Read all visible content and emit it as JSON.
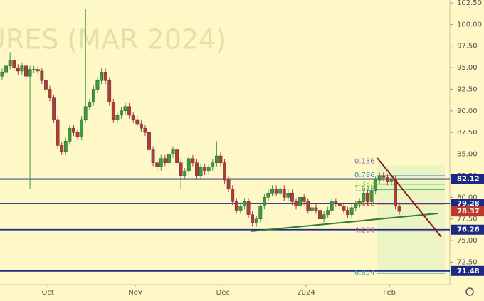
{
  "chart_data": {
    "type": "candlestick",
    "watermark": "URES (MAR 2024)",
    "up_color": "#3d9a3d",
    "down_color": "#b33a3a",
    "open": [
      94.0,
      94.5,
      95.2,
      95.8,
      95.0,
      94.6,
      95.2,
      94.0,
      94.8,
      94.8,
      94.6,
      93.5,
      92.5,
      91.5,
      89.0,
      86.0,
      85.3,
      86.5,
      88.0,
      87.5,
      87.0,
      89.0,
      90.5,
      91.0,
      92.5,
      93.5,
      94.5,
      93.5,
      91.0,
      89.0,
      89.5,
      90.0,
      90.5,
      89.5,
      89.0,
      88.5,
      88.0,
      87.5,
      85.5,
      84.0,
      83.5,
      84.5,
      84.0,
      85.0,
      85.5,
      84.0,
      82.5,
      83.0,
      84.5,
      84.0,
      82.5,
      83.5,
      83.0,
      83.5,
      84.0,
      84.8,
      84.0,
      82.0,
      81.0,
      79.5,
      78.5,
      79.0,
      79.5,
      78.0,
      77.0,
      77.5,
      79.0,
      80.0,
      80.5,
      81.0,
      80.5,
      81.0,
      80.0,
      80.5,
      79.5,
      79.0,
      80.0,
      79.5,
      78.5,
      78.8,
      78.5,
      77.5,
      78.0,
      78.5,
      79.5,
      79.3,
      79.0,
      78.5,
      78.0,
      78.8,
      79.2,
      79.5,
      80.5,
      79.5,
      80.8,
      82.0,
      82.5,
      82.3,
      81.8,
      82.0,
      79.0
    ],
    "high": [
      94.9,
      95.6,
      96.8,
      96.2,
      95.4,
      95.6,
      95.6,
      95.2,
      95.2,
      95.2,
      95.0,
      93.9,
      92.9,
      91.9,
      89.4,
      86.4,
      86.9,
      88.4,
      88.4,
      87.9,
      89.4,
      101.8,
      91.4,
      92.9,
      93.9,
      94.9,
      94.9,
      93.9,
      91.4,
      89.9,
      90.4,
      90.9,
      90.9,
      89.9,
      89.4,
      88.9,
      88.4,
      87.9,
      85.9,
      84.4,
      84.9,
      84.9,
      85.4,
      85.9,
      85.9,
      84.4,
      83.4,
      84.9,
      84.9,
      84.4,
      83.9,
      83.9,
      83.9,
      84.4,
      86.5,
      85.2,
      84.4,
      82.4,
      81.4,
      79.9,
      79.4,
      79.9,
      79.9,
      78.4,
      77.9,
      79.4,
      80.4,
      80.9,
      81.4,
      81.4,
      81.4,
      81.4,
      80.9,
      80.9,
      79.9,
      80.4,
      80.4,
      79.9,
      79.2,
      79.2,
      78.9,
      78.4,
      78.9,
      79.9,
      79.9,
      79.7,
      79.4,
      78.9,
      79.2,
      79.6,
      79.9,
      80.9,
      80.9,
      81.2,
      82.4,
      82.9,
      82.9,
      82.7,
      82.4,
      82.4,
      79.4
    ],
    "low": [
      93.6,
      94.1,
      94.8,
      94.6,
      94.2,
      94.2,
      93.6,
      81.0,
      94.4,
      94.2,
      93.1,
      92.1,
      91.1,
      88.6,
      85.6,
      84.9,
      84.9,
      86.1,
      87.1,
      86.6,
      86.6,
      88.6,
      90.1,
      90.6,
      92.1,
      93.1,
      93.1,
      90.6,
      88.6,
      88.6,
      89.1,
      89.6,
      89.1,
      88.6,
      88.1,
      87.6,
      87.1,
      85.1,
      83.6,
      83.1,
      83.1,
      83.6,
      83.6,
      84.6,
      83.6,
      81.0,
      82.1,
      82.6,
      83.6,
      82.1,
      82.1,
      82.6,
      82.6,
      83.1,
      83.6,
      83.6,
      81.6,
      80.6,
      79.1,
      78.1,
      78.1,
      78.6,
      77.6,
      76.6,
      76.6,
      77.1,
      78.6,
      79.6,
      80.1,
      80.1,
      80.1,
      79.6,
      79.6,
      79.1,
      78.6,
      78.6,
      79.1,
      78.1,
      78.1,
      78.1,
      77.1,
      77.1,
      77.6,
      78.1,
      78.9,
      78.6,
      78.1,
      77.6,
      77.6,
      78.4,
      78.8,
      79.1,
      79.1,
      79.1,
      80.4,
      81.6,
      81.9,
      81.4,
      81.4,
      78.6,
      78.0
    ],
    "close": [
      94.5,
      95.2,
      95.8,
      95.0,
      94.6,
      95.2,
      94.0,
      94.8,
      94.8,
      94.6,
      93.5,
      92.5,
      91.5,
      89.0,
      86.0,
      85.3,
      86.5,
      88.0,
      87.5,
      87.0,
      89.0,
      90.5,
      91.0,
      92.5,
      93.5,
      94.5,
      93.5,
      91.0,
      89.0,
      89.5,
      90.0,
      90.5,
      89.5,
      89.0,
      88.5,
      88.0,
      87.5,
      85.5,
      84.0,
      83.5,
      84.5,
      84.0,
      85.0,
      85.5,
      84.0,
      82.5,
      83.0,
      84.5,
      84.0,
      82.5,
      83.5,
      83.0,
      83.5,
      84.0,
      84.8,
      84.0,
      82.0,
      81.0,
      79.5,
      78.5,
      79.0,
      79.5,
      78.0,
      77.0,
      77.5,
      79.0,
      80.0,
      80.5,
      81.0,
      80.5,
      81.0,
      80.0,
      80.5,
      79.5,
      79.0,
      80.0,
      79.5,
      78.5,
      78.8,
      78.5,
      77.5,
      78.0,
      78.5,
      79.5,
      79.3,
      79.0,
      78.5,
      78.0,
      78.8,
      79.2,
      79.5,
      80.5,
      79.5,
      80.8,
      82.0,
      82.5,
      82.3,
      81.8,
      82.0,
      79.0,
      78.37
    ],
    "xlim": [
      -0.54,
      112.7
    ],
    "xticks": [
      {
        "value": 11.5,
        "label": "Oct"
      },
      {
        "value": 33.5,
        "label": "Nov"
      },
      {
        "value": 55.6,
        "label": "Dec"
      },
      {
        "value": 76.5,
        "label": "2024"
      },
      {
        "value": 97.5,
        "label": "Feb"
      }
    ],
    "ylim": [
      69.9,
      102.83
    ],
    "yticks": [
      {
        "value": 102.5,
        "label": "102.50"
      },
      {
        "value": 100,
        "label": "100.00"
      },
      {
        "value": 97.5,
        "label": "97.50"
      },
      {
        "value": 95,
        "label": "95.00"
      },
      {
        "value": 92.5,
        "label": "92.50"
      },
      {
        "value": 90,
        "label": "90.00"
      },
      {
        "value": 87.5,
        "label": "87.50"
      },
      {
        "value": 85,
        "label": "85.00"
      },
      {
        "value": 82.5,
        "label": "82.50"
      },
      {
        "value": 80,
        "label": "80.00"
      },
      {
        "value": 77.5,
        "label": "77.50"
      },
      {
        "value": 75,
        "label": "75.00"
      },
      {
        "value": 72.5,
        "label": "72.50"
      }
    ],
    "levels": [
      82.12,
      79.28,
      76.26,
      71.48
    ],
    "level_color": "#1c2a86",
    "last_price": 78.37,
    "last_price_color": "#c0392b",
    "fib_labels": [
      {
        "label": "0.136",
        "value": 84.1,
        "color": "#9b59b6"
      },
      {
        "label": "0.786",
        "value": 82.5,
        "color": "#2e86c1"
      },
      {
        "label": "1.382",
        "value": 81.5,
        "color": "#9acd32"
      },
      {
        "label": "1.618",
        "value": 80.9,
        "color": "#27ae60"
      },
      {
        "label": "2.618",
        "value": 79.2,
        "color": "#e74c3c"
      },
      {
        "label": "4.236",
        "value": 76.1,
        "color": "#a349a4"
      },
      {
        "label": "6.854",
        "value": 71.2,
        "color": "#48a9a6"
      }
    ]
  }
}
